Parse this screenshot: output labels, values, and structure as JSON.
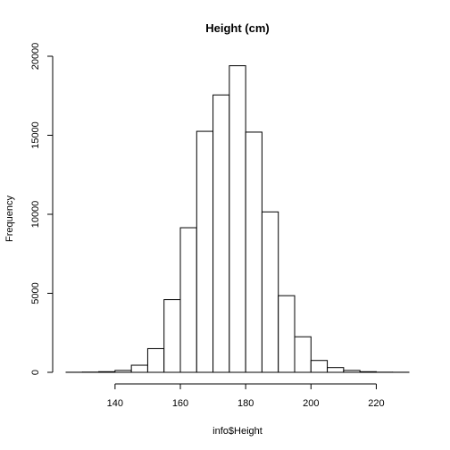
{
  "chart_data": {
    "type": "bar",
    "title": "Height (cm)",
    "xlabel": "info$Height",
    "ylabel": "Frequency",
    "bins": [
      {
        "start": 125,
        "end": 130,
        "count": 5
      },
      {
        "start": 130,
        "end": 135,
        "count": 15
      },
      {
        "start": 135,
        "end": 140,
        "count": 40
      },
      {
        "start": 140,
        "end": 145,
        "count": 120
      },
      {
        "start": 145,
        "end": 150,
        "count": 450
      },
      {
        "start": 150,
        "end": 155,
        "count": 1500
      },
      {
        "start": 155,
        "end": 160,
        "count": 4600
      },
      {
        "start": 160,
        "end": 165,
        "count": 9150
      },
      {
        "start": 165,
        "end": 170,
        "count": 15250
      },
      {
        "start": 170,
        "end": 175,
        "count": 17550
      },
      {
        "start": 175,
        "end": 180,
        "count": 19400
      },
      {
        "start": 180,
        "end": 185,
        "count": 15200
      },
      {
        "start": 185,
        "end": 190,
        "count": 10150
      },
      {
        "start": 190,
        "end": 195,
        "count": 4850
      },
      {
        "start": 195,
        "end": 200,
        "count": 2250
      },
      {
        "start": 200,
        "end": 205,
        "count": 750
      },
      {
        "start": 205,
        "end": 210,
        "count": 300
      },
      {
        "start": 210,
        "end": 215,
        "count": 120
      },
      {
        "start": 215,
        "end": 220,
        "count": 40
      },
      {
        "start": 220,
        "end": 225,
        "count": 10
      },
      {
        "start": 225,
        "end": 230,
        "count": 5
      }
    ],
    "xlim": [
      125,
      230
    ],
    "ylim": [
      0,
      20000
    ],
    "x_ticks": [
      140,
      160,
      180,
      200,
      220
    ],
    "y_ticks": [
      0,
      5000,
      10000,
      15000,
      20000
    ],
    "grid": false
  }
}
